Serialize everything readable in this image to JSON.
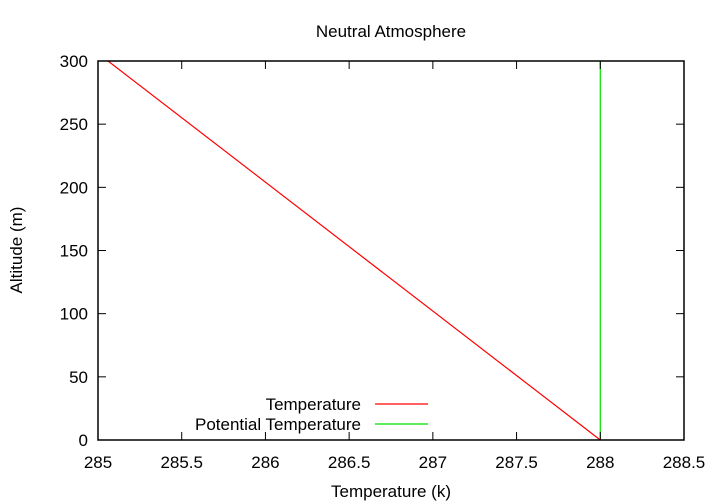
{
  "chart_data": {
    "type": "line",
    "title": "Neutral Atmosphere",
    "xlabel": "Temperature (k)",
    "ylabel": "Altitude (m)",
    "xlim": [
      285,
      288.5
    ],
    "ylim": [
      0,
      300
    ],
    "xticks": [
      285,
      285.5,
      286,
      286.5,
      287,
      287.5,
      288,
      288.5
    ],
    "xtick_labels": [
      "285",
      "285.5",
      "286",
      "286.5",
      "287",
      "287.5",
      "288",
      "288.5"
    ],
    "yticks": [
      0,
      50,
      100,
      150,
      200,
      250,
      300
    ],
    "ytick_labels": [
      "0",
      "50",
      "100",
      "150",
      "200",
      "250",
      "300"
    ],
    "grid": false,
    "legend_position": "bottom-left",
    "series": [
      {
        "name": "Temperature",
        "color": "#ff0000",
        "x": [
          288,
          285.06
        ],
        "y": [
          0,
          300
        ]
      },
      {
        "name": "Potential Temperature",
        "color": "#00dd00",
        "x": [
          288,
          288
        ],
        "y": [
          0,
          300
        ]
      }
    ]
  }
}
